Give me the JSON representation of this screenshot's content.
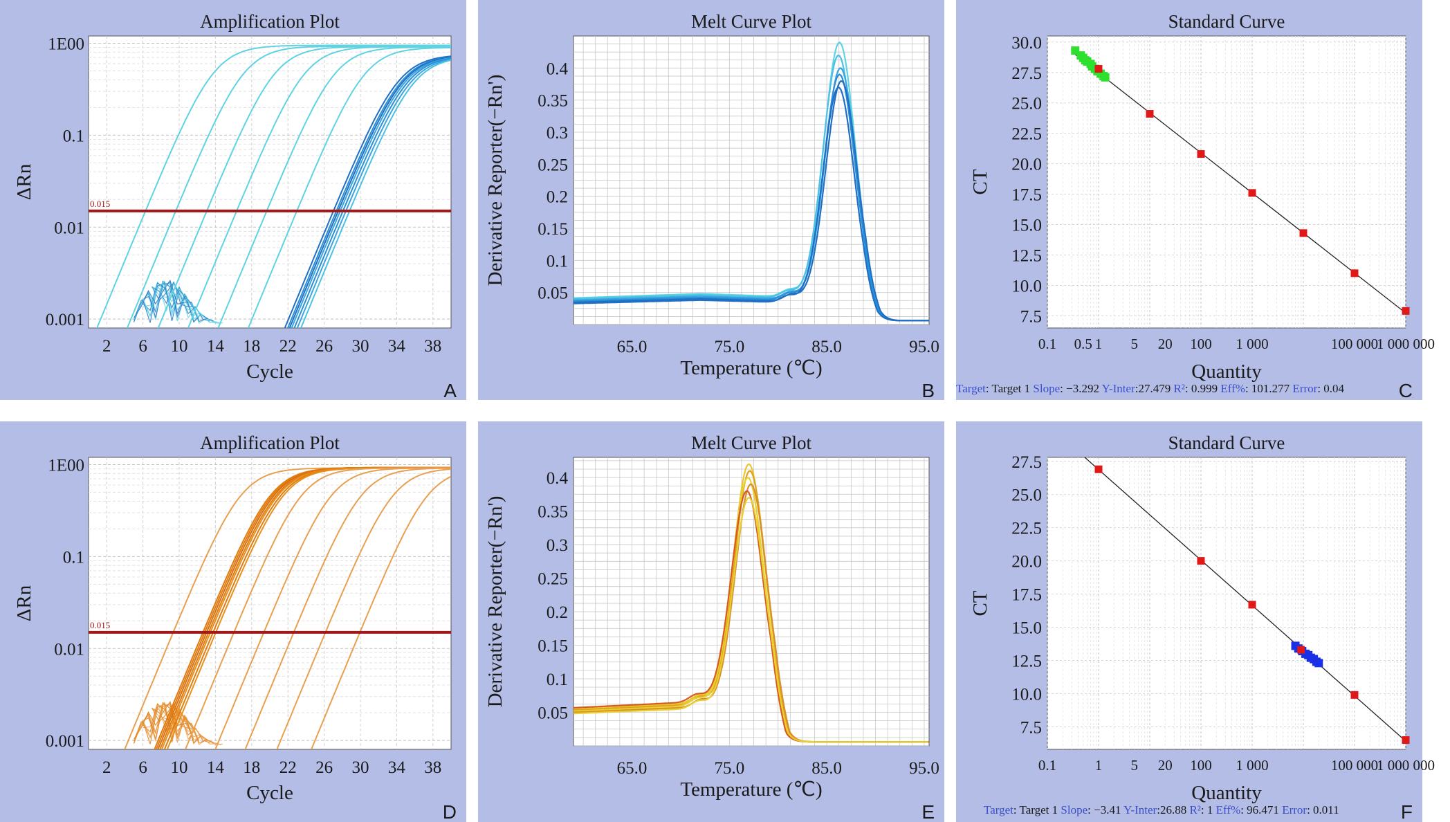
{
  "chart_data": [
    {
      "panel_letter": "A",
      "type": "line",
      "title": "Amplification Plot",
      "xlabel": "Cycle",
      "ylabel": "ΔRn",
      "yscale": "log",
      "xlim": [
        0,
        40
      ],
      "ylim": [
        0.0008,
        1.2
      ],
      "xticks": [
        "2",
        "6",
        "10",
        "14",
        "18",
        "22",
        "26",
        "30",
        "34",
        "38"
      ],
      "yticks": [
        {
          "v": 1,
          "t": "1E00"
        },
        {
          "v": 0.1,
          "t": "0.1"
        },
        {
          "v": 0.01,
          "t": "0.01"
        },
        {
          "v": 0.001,
          "t": "0.001"
        }
      ],
      "threshold": {
        "value": 0.015,
        "label": "0.015",
        "color": "#a01818"
      },
      "curve_colors": [
        "#5fd3e2",
        "#2a8fd6",
        "#1f6fc4"
      ],
      "series": [
        {
          "ct": 6.5,
          "plateau": 0.95,
          "color": "#5fd3e2"
        },
        {
          "ct": 9.8,
          "plateau": 0.93,
          "color": "#5fd3e2"
        },
        {
          "ct": 13.2,
          "plateau": 0.92,
          "color": "#5fd3e2"
        },
        {
          "ct": 16.5,
          "plateau": 0.92,
          "color": "#5fd3e2"
        },
        {
          "ct": 19.8,
          "plateau": 0.91,
          "color": "#5fd3e2"
        },
        {
          "ct": 23.1,
          "plateau": 0.9,
          "color": "#5fd3e2"
        },
        {
          "ct": 26.8,
          "plateau": 0.75,
          "color": "#1f6fc4"
        },
        {
          "ct": 27.1,
          "plateau": 0.74,
          "color": "#2a8fd6"
        },
        {
          "ct": 27.3,
          "plateau": 0.74,
          "color": "#1f6fc4"
        },
        {
          "ct": 27.5,
          "plateau": 0.73,
          "color": "#3aa6e0"
        },
        {
          "ct": 27.8,
          "plateau": 0.73,
          "color": "#2a8fd6"
        },
        {
          "ct": 28.1,
          "plateau": 0.72,
          "color": "#3aa6e0"
        },
        {
          "ct": 28.5,
          "plateau": 0.72,
          "color": "#4cc0e6"
        }
      ]
    },
    {
      "panel_letter": "B",
      "type": "line",
      "title": "Melt Curve Plot",
      "xlabel": "Temperature (℃)",
      "ylabel": "Derivative Reporter(−Rn')",
      "xlim": [
        59,
        95.5
      ],
      "ylim": [
        0,
        0.45
      ],
      "xticks": [
        "65.0",
        "75.0",
        "85.0",
        "95.0"
      ],
      "yticks": [
        "0.05",
        "0.1",
        "0.15",
        "0.2",
        "0.25",
        "0.3",
        "0.35",
        "0.4"
      ],
      "curve_colors": [
        "#5fd3e2",
        "#2a8fd6",
        "#1f6fc4"
      ],
      "series": [
        {
          "peak_temp": 86.3,
          "peak": 0.44,
          "base": 0.048,
          "color": "#5fd3e2"
        },
        {
          "peak_temp": 86.2,
          "peak": 0.42,
          "base": 0.046,
          "color": "#4cc0e6"
        },
        {
          "peak_temp": 86.4,
          "peak": 0.4,
          "base": 0.044,
          "color": "#3aa6e0"
        },
        {
          "peak_temp": 86.3,
          "peak": 0.39,
          "base": 0.042,
          "color": "#2a8fd6"
        },
        {
          "peak_temp": 86.5,
          "peak": 0.38,
          "base": 0.04,
          "color": "#1f6fc4"
        },
        {
          "peak_temp": 86.2,
          "peak": 0.37,
          "base": 0.038,
          "color": "#1f6fc4"
        }
      ]
    },
    {
      "panel_letter": "C",
      "type": "scatter",
      "title": "Standard Curve",
      "xlabel": "Quantity",
      "ylabel": "CT",
      "xscale": "log",
      "xlim": [
        0.1,
        1000000
      ],
      "ylim": [
        6.5,
        30.5
      ],
      "xticks": [
        {
          "v": 0.1,
          "t": "0.1"
        },
        {
          "v": 0.5,
          "t": "0.5"
        },
        {
          "v": 1,
          "t": "1"
        },
        {
          "v": 5,
          "t": "5"
        },
        {
          "v": 20,
          "t": "20"
        },
        {
          "v": 100,
          "t": "100"
        },
        {
          "v": 1000,
          "t": "1 000"
        },
        {
          "v": 100000,
          "t": "100 000"
        },
        {
          "v": 1000000,
          "t": "1 000 000"
        }
      ],
      "yticks": [
        "7.5",
        "10.0",
        "12.5",
        "15.0",
        "17.5",
        "20.0",
        "22.5",
        "25.0",
        "27.5",
        "30.0"
      ],
      "fit": {
        "slope": -3.292,
        "intercept": 27.479
      },
      "standards": [
        {
          "q": 1,
          "ct": 27.8
        },
        {
          "q": 10,
          "ct": 24.1
        },
        {
          "q": 100,
          "ct": 20.8
        },
        {
          "q": 1000,
          "ct": 17.6
        },
        {
          "q": 10000,
          "ct": 14.3
        },
        {
          "q": 100000,
          "ct": 11.0
        },
        {
          "q": 1000000,
          "ct": 7.9
        }
      ],
      "unknowns": [
        {
          "q": 0.35,
          "ct": 29.3
        },
        {
          "q": 0.45,
          "ct": 28.9
        },
        {
          "q": 0.5,
          "ct": 28.7
        },
        {
          "q": 0.55,
          "ct": 28.5
        },
        {
          "q": 0.6,
          "ct": 28.4
        },
        {
          "q": 0.7,
          "ct": 28.2
        },
        {
          "q": 0.75,
          "ct": 28.0
        },
        {
          "q": 0.85,
          "ct": 27.8
        },
        {
          "q": 0.95,
          "ct": 27.6
        },
        {
          "q": 1.1,
          "ct": 27.4
        },
        {
          "q": 1.25,
          "ct": 27.2
        },
        {
          "q": 1.35,
          "ct": 27.1
        }
      ],
      "standard_color": "#e01818",
      "unknown_color": "#2ee02e",
      "stats": {
        "target_k": "Target",
        "target": "Target 1",
        "slope_k": "Slope",
        "slope": "−3.292",
        "yint_k": "Y-Inter",
        "yint": "27.479",
        "r2_k": "R²",
        "r2": "0.999",
        "eff_k": "Eff%",
        "eff": "101.277",
        "err_k": "Error",
        "err": "0.04"
      }
    },
    {
      "panel_letter": "D",
      "type": "line",
      "title": "Amplification Plot",
      "xlabel": "Cycle",
      "ylabel": "ΔRn",
      "yscale": "log",
      "xlim": [
        0,
        40
      ],
      "ylim": [
        0.0008,
        1.2
      ],
      "xticks": [
        "2",
        "6",
        "10",
        "14",
        "18",
        "22",
        "26",
        "30",
        "34",
        "38"
      ],
      "yticks": [
        {
          "v": 1,
          "t": "1E00"
        },
        {
          "v": 0.1,
          "t": "0.1"
        },
        {
          "v": 0.01,
          "t": "0.01"
        },
        {
          "v": 0.001,
          "t": "0.001"
        }
      ],
      "threshold": {
        "value": 0.015,
        "label": "0.015",
        "color": "#a01818"
      },
      "curve_colors": [
        "#e8a050",
        "#e07c10"
      ],
      "series": [
        {
          "ct": 9.5,
          "plateau": 0.92,
          "color": "#e8a050"
        },
        {
          "ct": 12.8,
          "plateau": 0.93,
          "color": "#e07c10"
        },
        {
          "ct": 13.0,
          "plateau": 0.93,
          "color": "#e07c10"
        },
        {
          "ct": 13.2,
          "plateau": 0.93,
          "color": "#d87010"
        },
        {
          "ct": 13.4,
          "plateau": 0.92,
          "color": "#e07c10"
        },
        {
          "ct": 13.6,
          "plateau": 0.92,
          "color": "#e8901c"
        },
        {
          "ct": 13.9,
          "plateau": 0.92,
          "color": "#e07c10"
        },
        {
          "ct": 14.2,
          "plateau": 0.92,
          "color": "#e8901c"
        },
        {
          "ct": 16.2,
          "plateau": 0.92,
          "color": "#e8a050"
        },
        {
          "ct": 19.5,
          "plateau": 0.92,
          "color": "#e8a050"
        },
        {
          "ct": 22.8,
          "plateau": 0.92,
          "color": "#e8a050"
        },
        {
          "ct": 26.3,
          "plateau": 0.92,
          "color": "#e8a050"
        },
        {
          "ct": 30.1,
          "plateau": 0.92,
          "color": "#e8a050"
        }
      ]
    },
    {
      "panel_letter": "E",
      "type": "line",
      "title": "Melt Curve Plot",
      "xlabel": "Temperature (℃)",
      "ylabel": "Derivative Reporter(−Rn')",
      "xlim": [
        59,
        95.5
      ],
      "ylim": [
        0,
        0.43
      ],
      "xticks": [
        "65.0",
        "75.0",
        "85.0",
        "95.0"
      ],
      "yticks": [
        "0.05",
        "0.1",
        "0.15",
        "0.2",
        "0.25",
        "0.3",
        "0.35",
        "0.4"
      ],
      "curve_colors": [
        "#e8d030",
        "#e0a020",
        "#d85a20"
      ],
      "series": [
        {
          "peak_temp": 77.0,
          "peak": 0.42,
          "base": 0.064,
          "color": "#e8c830"
        },
        {
          "peak_temp": 77.1,
          "peak": 0.41,
          "base": 0.062,
          "color": "#e0a020"
        },
        {
          "peak_temp": 76.9,
          "peak": 0.4,
          "base": 0.06,
          "color": "#e8d030"
        },
        {
          "peak_temp": 77.2,
          "peak": 0.39,
          "base": 0.058,
          "color": "#d8902a"
        },
        {
          "peak_temp": 76.8,
          "peak": 0.38,
          "base": 0.066,
          "color": "#d85a20"
        },
        {
          "peak_temp": 77.0,
          "peak": 0.37,
          "base": 0.056,
          "color": "#e8d030"
        }
      ]
    },
    {
      "panel_letter": "F",
      "type": "scatter",
      "title": "Standard Curve",
      "xlabel": "Quantity",
      "ylabel": "CT",
      "xscale": "log",
      "xlim": [
        0.1,
        1000000
      ],
      "ylim": [
        5.8,
        27.8
      ],
      "xticks": [
        {
          "v": 0.1,
          "t": "0.1"
        },
        {
          "v": 1,
          "t": "1"
        },
        {
          "v": 5,
          "t": "5"
        },
        {
          "v": 20,
          "t": "20"
        },
        {
          "v": 100,
          "t": "100"
        },
        {
          "v": 1000,
          "t": "1 000"
        },
        {
          "v": 100000,
          "t": "100 000"
        },
        {
          "v": 1000000,
          "t": "1 000 000"
        }
      ],
      "yticks": [
        "7.5",
        "10.0",
        "12.5",
        "15.0",
        "17.5",
        "20.0",
        "22.5",
        "25.0",
        "27.5"
      ],
      "fit": {
        "slope": -3.41,
        "intercept": 26.88
      },
      "standards": [
        {
          "q": 1,
          "ct": 26.9
        },
        {
          "q": 100,
          "ct": 20.0
        },
        {
          "q": 1000,
          "ct": 16.7
        },
        {
          "q": 9000,
          "ct": 13.3
        },
        {
          "q": 100000,
          "ct": 9.9
        },
        {
          "q": 1000000,
          "ct": 6.5
        }
      ],
      "unknowns": [
        {
          "q": 7000,
          "ct": 13.6
        },
        {
          "q": 8000,
          "ct": 13.4
        },
        {
          "q": 9500,
          "ct": 13.2
        },
        {
          "q": 11000,
          "ct": 13.0
        },
        {
          "q": 12500,
          "ct": 12.9
        },
        {
          "q": 14000,
          "ct": 12.7
        },
        {
          "q": 16000,
          "ct": 12.6
        },
        {
          "q": 18000,
          "ct": 12.4
        },
        {
          "q": 20000,
          "ct": 12.3
        }
      ],
      "standard_color": "#e01818",
      "unknown_color": "#1a30e8",
      "stats": {
        "target_k": "Target",
        "target": "Target 1",
        "slope_k": "Slope",
        "slope": "−3.41",
        "yint_k": "Y-Inter",
        "yint": "26.88",
        "r2_k": "R²",
        "r2": "1",
        "eff_k": "Eff%",
        "eff": "96.471",
        "err_k": "Error",
        "err": "0.011"
      }
    }
  ]
}
